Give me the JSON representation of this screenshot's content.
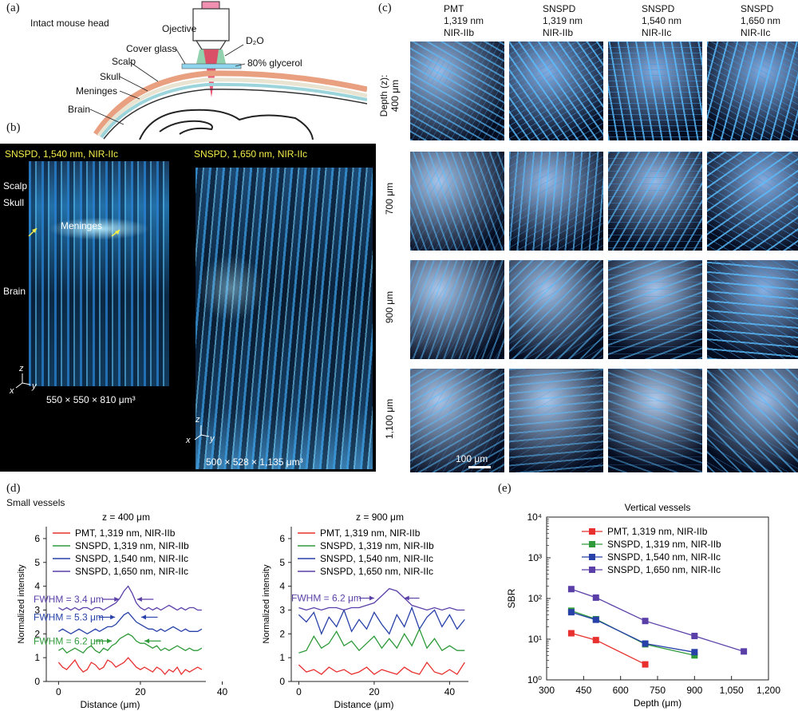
{
  "panel_a": {
    "letter": "(a)",
    "title": "Intact mouse head",
    "labels": {
      "objective": "Ojective",
      "d2o": "D₂O",
      "cover_glass": "Cover glass",
      "glycerol": "80% glycerol",
      "scalp": "Scalp",
      "skull": "Skull",
      "meninges": "Meninges",
      "brain": "Brain"
    }
  },
  "panel_b": {
    "letter": "(b)",
    "left": {
      "title": "SNSPD, 1,540 nm, NIR-IIc",
      "scalp": "Scalp",
      "skull": "Skull",
      "meninges": "Meninges",
      "brain": "Brain",
      "volume": "550 × 550 × 810 μm³"
    },
    "right": {
      "title": "SNSPD, 1,650 nm, NIR-IIc",
      "volume": "500 × 528 × 1,135 μm³"
    },
    "axes": {
      "x": "x",
      "y": "y",
      "z": "z"
    }
  },
  "panel_c": {
    "letter": "(c)",
    "columns": [
      {
        "l1": "PMT",
        "l2": "1,319 nm",
        "l3": "NIR-IIb"
      },
      {
        "l1": "SNSPD",
        "l2": "1,319 nm",
        "l3": "NIR-IIb"
      },
      {
        "l1": "SNSPD",
        "l2": "1,540 nm",
        "l3": "NIR-IIc"
      },
      {
        "l1": "SNSPD",
        "l2": "1,650 nm",
        "l3": "NIR-IIc"
      }
    ],
    "rows": [
      "Depth (z):",
      "400 μm",
      "700 μm",
      "900 μm",
      "1,100 μm"
    ],
    "scalebar": "100 μm"
  },
  "panel_d": {
    "letter": "(d)",
    "heading": "Small vessels"
  },
  "panel_e": {
    "letter": "(e)"
  },
  "chart_data": [
    {
      "type": "line",
      "title": "z = 400 μm",
      "xlabel": "Distance (μm)",
      "ylabel": "Normalized intensity",
      "xlim": [
        -3,
        36
      ],
      "ylim": [
        0,
        6.5
      ],
      "xticks": [
        "0",
        "20",
        "40"
      ],
      "yticks": [
        "0",
        "1",
        "2",
        "3",
        "4",
        "5",
        "6"
      ],
      "legend": [
        "PMT, 1,319 nm, NIR-IIb",
        "SNSPD, 1,319 nm, NIR-IIb",
        "SNSPD, 1,540 nm, NIR-IIc",
        "SNSPD, 1,650 nm, NIR-IIc"
      ],
      "annotations": [
        "FWHM = 3.4 μm",
        "FWHM = 5.3 μm",
        "FWHM = 6.2 μm"
      ],
      "series": [
        {
          "name": "PMT, 1,319 nm, NIR-IIb",
          "color": "#e8312f",
          "x": [
            0,
            1,
            2,
            3,
            4,
            5,
            6,
            7,
            8,
            9,
            10,
            11,
            12,
            13,
            14,
            15,
            16,
            17,
            18,
            19,
            20,
            21,
            22,
            23,
            24,
            25,
            26,
            27,
            28,
            29,
            30,
            31,
            32,
            33,
            34,
            35
          ],
          "y": [
            0.8,
            0.6,
            0.5,
            0.7,
            0.9,
            0.6,
            0.4,
            0.5,
            0.8,
            0.7,
            0.5,
            0.6,
            0.9,
            0.8,
            0.6,
            0.7,
            0.8,
            1.0,
            0.8,
            0.6,
            0.5,
            0.6,
            0.5,
            0.4,
            0.6,
            0.5,
            0.3,
            0.5,
            0.4,
            0.6,
            0.3,
            0.5,
            0.4,
            0.5,
            0.6,
            0.5
          ]
        },
        {
          "name": "SNSPD, 1,319 nm, NIR-IIb",
          "color": "#2f9a3a",
          "x": [
            0,
            1,
            2,
            3,
            4,
            5,
            6,
            7,
            8,
            9,
            10,
            11,
            12,
            13,
            14,
            15,
            16,
            17,
            18,
            19,
            20,
            21,
            22,
            23,
            24,
            25,
            26,
            27,
            28,
            29,
            30,
            31,
            32,
            33,
            34,
            35
          ],
          "y": [
            1.3,
            1.4,
            1.2,
            1.3,
            1.4,
            1.3,
            1.2,
            1.4,
            1.5,
            1.3,
            1.2,
            1.4,
            1.3,
            1.5,
            1.6,
            1.8,
            1.9,
            2.0,
            1.9,
            1.7,
            1.6,
            1.6,
            1.5,
            1.4,
            1.5,
            1.3,
            1.4,
            1.3,
            1.4,
            1.5,
            1.4,
            1.3,
            1.4,
            1.3,
            1.3,
            1.4
          ]
        },
        {
          "name": "SNSPD, 1,540 nm, NIR-IIc",
          "color": "#2741a8",
          "x": [
            0,
            1,
            2,
            3,
            4,
            5,
            6,
            7,
            8,
            9,
            10,
            11,
            12,
            13,
            14,
            15,
            16,
            17,
            18,
            19,
            20,
            21,
            22,
            23,
            24,
            25,
            26,
            27,
            28,
            29,
            30,
            31,
            32,
            33,
            34,
            35
          ],
          "y": [
            2.1,
            2.2,
            2.1,
            2.0,
            2.1,
            2.2,
            2.1,
            2.0,
            2.1,
            2.2,
            2.1,
            2.2,
            2.3,
            2.3,
            2.4,
            2.6,
            2.8,
            2.9,
            2.7,
            2.5,
            2.4,
            2.3,
            2.2,
            2.2,
            2.1,
            2.2,
            2.1,
            2.2,
            2.3,
            2.2,
            2.1,
            2.2,
            2.1,
            2.1,
            2.1,
            2.2
          ]
        },
        {
          "name": "SNSPD, 1,650 nm, NIR-IIc",
          "color": "#5a3fa8",
          "x": [
            0,
            1,
            2,
            3,
            4,
            5,
            6,
            7,
            8,
            9,
            10,
            11,
            12,
            13,
            14,
            15,
            16,
            17,
            18,
            19,
            20,
            21,
            22,
            23,
            24,
            25,
            26,
            27,
            28,
            29,
            30,
            31,
            32,
            33,
            34,
            35
          ],
          "y": [
            3.1,
            3.0,
            3.1,
            3.0,
            3.1,
            3.0,
            3.1,
            3.1,
            3.0,
            3.1,
            3.1,
            3.0,
            3.1,
            3.2,
            3.3,
            3.5,
            3.8,
            4.0,
            3.7,
            3.3,
            3.1,
            3.0,
            3.1,
            3.0,
            3.1,
            3.0,
            3.1,
            3.2,
            3.1,
            3.0,
            3.1,
            3.0,
            3.1,
            3.1,
            3.0,
            3.0
          ]
        }
      ]
    },
    {
      "type": "line",
      "title": "z = 900 μm",
      "xlabel": "Distance (μm)",
      "ylabel": "Normalized intensity",
      "xlim": [
        -2,
        45
      ],
      "ylim": [
        0,
        6.5
      ],
      "xticks": [
        "0",
        "20",
        "40"
      ],
      "yticks": [
        "0",
        "1",
        "2",
        "3",
        "4",
        "5",
        "6"
      ],
      "legend": [
        "PMT, 1,319 nm, NIR-IIb",
        "SNSPD, 1,319 nm, NIR-IIb",
        "SNSPD, 1,540 nm, NIR-IIc",
        "SNSPD, 1,650 nm, NIR-IIc"
      ],
      "annotations": [
        "FWHM = 6.2 μm"
      ],
      "series": [
        {
          "name": "PMT, 1,319 nm, NIR-IIb",
          "color": "#e8312f",
          "x": [
            0,
            2,
            4,
            6,
            8,
            10,
            12,
            14,
            16,
            18,
            20,
            22,
            24,
            26,
            28,
            30,
            32,
            34,
            36,
            38,
            40,
            42,
            44
          ],
          "y": [
            0.7,
            0.4,
            0.5,
            0.3,
            0.6,
            0.4,
            0.5,
            0.3,
            0.4,
            0.6,
            0.3,
            0.5,
            0.4,
            0.3,
            0.6,
            0.4,
            0.3,
            0.8,
            0.4,
            0.3,
            0.5,
            0.3,
            0.8
          ]
        },
        {
          "name": "SNSPD, 1,319 nm, NIR-IIb",
          "color": "#2f9a3a",
          "x": [
            0,
            2,
            4,
            6,
            8,
            10,
            12,
            14,
            16,
            18,
            20,
            22,
            24,
            26,
            28,
            30,
            32,
            34,
            36,
            38,
            40,
            42,
            44
          ],
          "y": [
            1.2,
            1.3,
            1.9,
            1.4,
            1.6,
            2.1,
            1.5,
            1.7,
            1.3,
            1.6,
            1.9,
            1.4,
            1.8,
            1.4,
            2.0,
            1.5,
            2.2,
            1.4,
            1.8,
            1.3,
            1.5,
            1.3,
            1.3
          ]
        },
        {
          "name": "SNSPD, 1,540 nm, NIR-IIc",
          "color": "#2741a8",
          "x": [
            0,
            2,
            4,
            6,
            8,
            10,
            12,
            14,
            16,
            18,
            20,
            22,
            24,
            26,
            28,
            30,
            32,
            34,
            36,
            38,
            40,
            42,
            44
          ],
          "y": [
            2.8,
            2.5,
            2.9,
            2.0,
            2.7,
            2.3,
            3.0,
            2.1,
            2.6,
            2.2,
            2.9,
            2.4,
            2.0,
            2.8,
            2.3,
            3.1,
            2.2,
            2.7,
            3.0,
            2.3,
            2.8,
            2.2,
            2.6
          ]
        },
        {
          "name": "SNSPD, 1,650 nm, NIR-IIc",
          "color": "#5a3fa8",
          "x": [
            0,
            2,
            4,
            6,
            8,
            10,
            12,
            14,
            16,
            18,
            20,
            22,
            24,
            26,
            28,
            30,
            32,
            34,
            36,
            38,
            40,
            42,
            44
          ],
          "y": [
            3.1,
            3.0,
            3.1,
            3.0,
            3.1,
            3.1,
            3.0,
            3.1,
            3.1,
            3.2,
            3.3,
            3.6,
            3.9,
            3.8,
            3.5,
            3.2,
            3.1,
            3.0,
            3.1,
            3.0,
            3.1,
            3.0,
            3.0
          ]
        }
      ]
    },
    {
      "type": "line",
      "title": "Vertical vessels",
      "xlabel": "Depth (μm)",
      "ylabel": "SBR",
      "log_y": true,
      "xlim": [
        300,
        1200
      ],
      "ylim": [
        1,
        10000
      ],
      "xticks": [
        "300",
        "450",
        "600",
        "750",
        "900",
        "1,050",
        "1,200"
      ],
      "yticks": [
        "10⁰",
        "10¹",
        "10²",
        "10³",
        "10⁴"
      ],
      "legend": [
        "PMT, 1,319 nm, NIR-IIb",
        "SNSPD, 1,319 nm, NIR-IIb",
        "SNSPD, 1,540 nm, NIR-IIc",
        "SNSPD, 1,650 nm, NIR-IIc"
      ],
      "series": [
        {
          "name": "PMT, 1,319 nm, NIR-IIb",
          "color": "#e8312f",
          "x": [
            400,
            500,
            700
          ],
          "y": [
            14,
            9.5,
            2.4
          ]
        },
        {
          "name": "SNSPD, 1,319 nm, NIR-IIb",
          "color": "#2f9a3a",
          "x": [
            400,
            500,
            700,
            900
          ],
          "y": [
            50,
            31,
            7.5,
            4.0
          ]
        },
        {
          "name": "SNSPD, 1,540 nm, NIR-IIc",
          "color": "#2741a8",
          "x": [
            400,
            500,
            700,
            900
          ],
          "y": [
            46,
            30,
            7.8,
            4.8
          ]
        },
        {
          "name": "SNSPD, 1,650 nm, NIR-IIc",
          "color": "#5a3fa8",
          "x": [
            400,
            500,
            700,
            900,
            1100
          ],
          "y": [
            170,
            105,
            28,
            12,
            5
          ]
        }
      ]
    }
  ]
}
